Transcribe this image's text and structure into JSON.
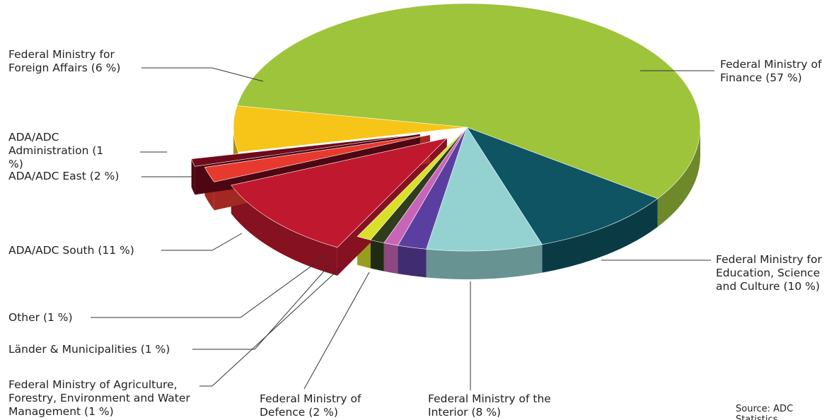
{
  "chart_data": {
    "type": "pie",
    "categories": [
      "Federal Ministry of Finance",
      "Federal Ministry for Education, Science and Culture",
      "Federal Ministry of the Interior",
      "Federal Ministry of Defence",
      "Federal Ministry of Agriculture, Forestry, Environment and Water Management",
      "Länder & Municipalities",
      "Other",
      "ADA/ADC South",
      "ADA/ADC East",
      "ADA/ADC Administration",
      "Federal Ministry for Foreign Affairs"
    ],
    "values": [
      57,
      10,
      8,
      2,
      1,
      1,
      1,
      11,
      2,
      1,
      6
    ],
    "value_labels": [
      "(57 %)",
      "(10 %)",
      "(8 %)",
      "(2 %)",
      "(1 %)",
      "(1 %)",
      "(1 %)",
      "(11 %)",
      "(2 %)",
      "(1 %)",
      "(6 %)"
    ],
    "colors": [
      "#9dc43b",
      "#0e5463",
      "#94d2d2",
      "#5b3fa0",
      "#c965b8",
      "#2f3d1c",
      "#d8e02a",
      "#c0182e",
      "#e8392f",
      "#6e0a1a",
      "#f6c518"
    ],
    "source": "Source: ADC Statistics"
  }
}
